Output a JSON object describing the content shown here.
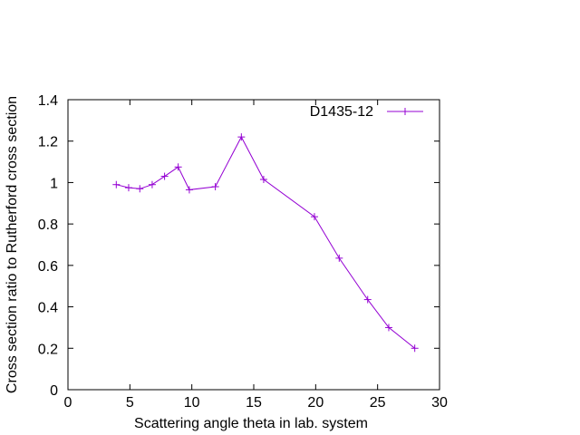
{
  "chart_data": {
    "type": "line",
    "title": "",
    "xlabel": "Scattering angle theta in lab. system",
    "ylabel": "Cross section ratio to Rutherford cross section",
    "xlim": [
      0,
      30
    ],
    "ylim": [
      0,
      1.4
    ],
    "x_ticks": [
      0,
      5,
      10,
      15,
      20,
      25,
      30
    ],
    "y_ticks": [
      0,
      0.2,
      0.4,
      0.6,
      0.8,
      1,
      1.2,
      1.4
    ],
    "x_tick_labels": [
      "0",
      "5",
      "10",
      "15",
      "20",
      "25",
      "30"
    ],
    "y_tick_labels": [
      "0",
      "0.2",
      "0.4",
      "0.6",
      "0.8",
      "1",
      "1.2",
      "1.4"
    ],
    "grid": false,
    "legend_position": "top-right",
    "series": [
      {
        "name": "D1435-12",
        "color": "#9400d3",
        "marker": "plus",
        "x": [
          3.9,
          4.9,
          5.8,
          6.8,
          7.8,
          8.9,
          9.8,
          11.9,
          14.0,
          15.8,
          19.9,
          21.9,
          24.2,
          25.9,
          28.0
        ],
        "y": [
          0.99,
          0.975,
          0.97,
          0.99,
          1.03,
          1.075,
          0.965,
          0.98,
          1.22,
          1.015,
          0.835,
          0.635,
          0.435,
          0.3,
          0.2
        ]
      }
    ]
  }
}
